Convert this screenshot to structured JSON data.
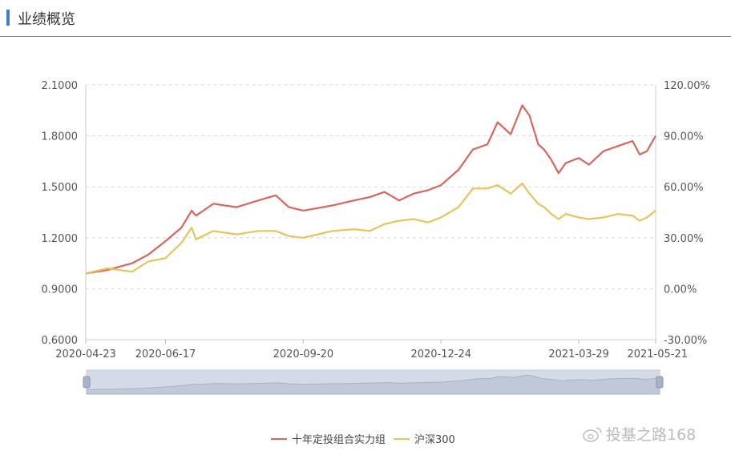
{
  "header": {
    "title": "业绩概览"
  },
  "legend": {
    "series1": "十年定投组合实力组",
    "series2": "沪深300"
  },
  "watermark": "投基之路168",
  "chart_data": {
    "type": "line",
    "y_left": {
      "ticks": [
        "2.1000",
        "1.8000",
        "1.5000",
        "1.2000",
        "0.9000",
        "0.6000"
      ],
      "range": [
        0.6,
        2.1
      ]
    },
    "y_right": {
      "ticks": [
        "120.00%",
        "90.00%",
        "60.00%",
        "30.00%",
        "0.00%",
        "-30.00%"
      ],
      "range": [
        -30,
        120
      ]
    },
    "x_ticks": [
      "2020-04-23",
      "2020-06-17",
      "2020-09-20",
      "2020-12-24",
      "2021-03-29",
      "2021-05-21"
    ],
    "x_range": [
      "2020-04-23",
      "2021-05-21"
    ],
    "grid": true,
    "legend_position": "bottom",
    "series": [
      {
        "name": "十年定投组合实力组",
        "color": "#d9665c",
        "x": [
          "2020-04-23",
          "2020-05-08",
          "2020-05-25",
          "2020-06-05",
          "2020-06-17",
          "2020-06-28",
          "2020-07-05",
          "2020-07-08",
          "2020-07-20",
          "2020-08-05",
          "2020-08-20",
          "2020-09-01",
          "2020-09-10",
          "2020-09-20",
          "2020-10-10",
          "2020-10-25",
          "2020-11-05",
          "2020-11-15",
          "2020-11-25",
          "2020-12-05",
          "2020-12-15",
          "2020-12-24",
          "2021-01-05",
          "2021-01-15",
          "2021-01-25",
          "2021-02-01",
          "2021-02-10",
          "2021-02-18",
          "2021-02-23",
          "2021-03-01",
          "2021-03-05",
          "2021-03-10",
          "2021-03-15",
          "2021-03-20",
          "2021-03-29",
          "2021-04-05",
          "2021-04-15",
          "2021-04-25",
          "2021-05-05",
          "2021-05-10",
          "2021-05-15",
          "2021-05-21"
        ],
        "y": [
          0.99,
          1.01,
          1.05,
          1.1,
          1.18,
          1.26,
          1.36,
          1.33,
          1.4,
          1.38,
          1.42,
          1.45,
          1.38,
          1.36,
          1.39,
          1.42,
          1.44,
          1.47,
          1.42,
          1.46,
          1.48,
          1.51,
          1.6,
          1.72,
          1.75,
          1.88,
          1.81,
          1.98,
          1.92,
          1.75,
          1.72,
          1.66,
          1.58,
          1.64,
          1.67,
          1.63,
          1.71,
          1.74,
          1.77,
          1.69,
          1.71,
          1.8
        ]
      },
      {
        "name": "沪深300",
        "color": "#e7c45a",
        "x": [
          "2020-04-23",
          "2020-05-08",
          "2020-05-25",
          "2020-06-05",
          "2020-06-17",
          "2020-06-28",
          "2020-07-05",
          "2020-07-08",
          "2020-07-20",
          "2020-08-05",
          "2020-08-20",
          "2020-09-01",
          "2020-09-10",
          "2020-09-20",
          "2020-10-10",
          "2020-10-25",
          "2020-11-05",
          "2020-11-15",
          "2020-11-25",
          "2020-12-05",
          "2020-12-15",
          "2020-12-24",
          "2021-01-05",
          "2021-01-15",
          "2021-01-25",
          "2021-02-01",
          "2021-02-10",
          "2021-02-18",
          "2021-02-23",
          "2021-03-01",
          "2021-03-05",
          "2021-03-10",
          "2021-03-15",
          "2021-03-20",
          "2021-03-29",
          "2021-04-05",
          "2021-04-15",
          "2021-04-25",
          "2021-05-05",
          "2021-05-10",
          "2021-05-15",
          "2021-05-21"
        ],
        "y": [
          0.99,
          1.02,
          1.0,
          1.06,
          1.08,
          1.17,
          1.26,
          1.19,
          1.24,
          1.22,
          1.24,
          1.24,
          1.21,
          1.2,
          1.24,
          1.25,
          1.24,
          1.28,
          1.3,
          1.31,
          1.29,
          1.32,
          1.38,
          1.49,
          1.49,
          1.51,
          1.46,
          1.52,
          1.46,
          1.4,
          1.38,
          1.34,
          1.31,
          1.34,
          1.32,
          1.31,
          1.32,
          1.34,
          1.33,
          1.3,
          1.32,
          1.36
        ]
      }
    ]
  }
}
